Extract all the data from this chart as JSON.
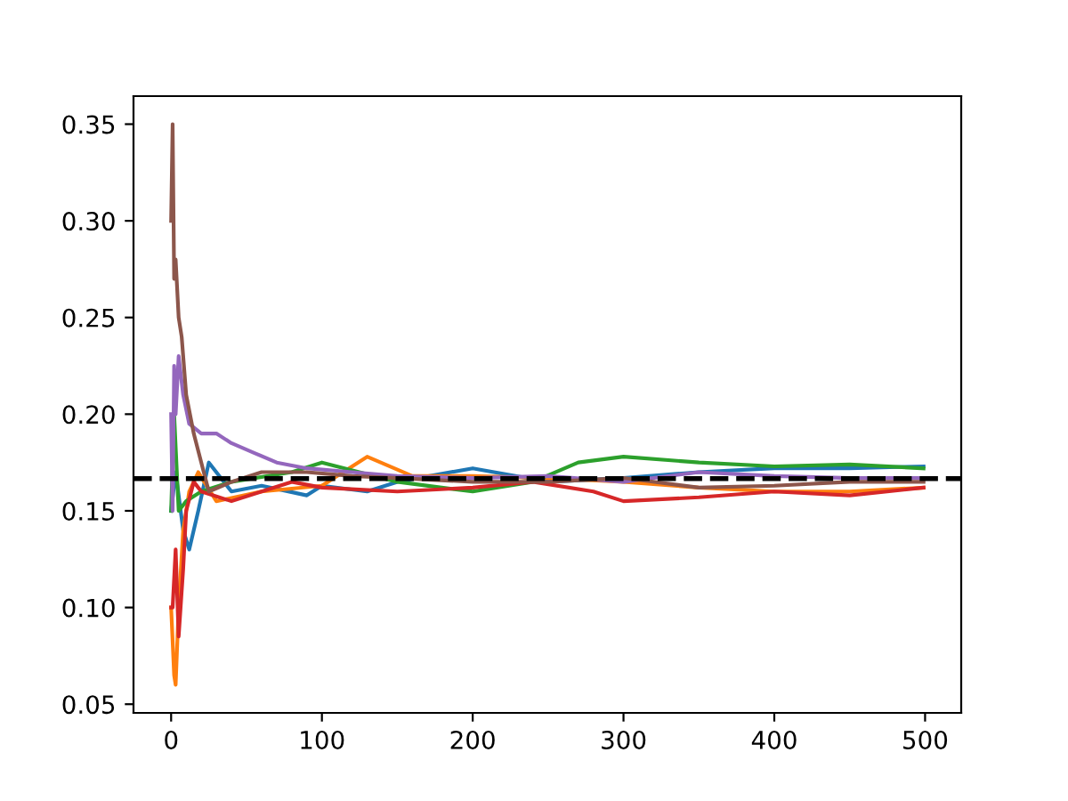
{
  "chart_data": {
    "type": "line",
    "xlim": [
      -24.95,
      523.95
    ],
    "ylim": [
      0.0455,
      0.3645
    ],
    "xticks": [
      0,
      100,
      200,
      300,
      400,
      500
    ],
    "yticks": [
      {
        "value": 0.05,
        "label": "0.05"
      },
      {
        "value": 0.1,
        "label": "0.10"
      },
      {
        "value": 0.15,
        "label": "0.15"
      },
      {
        "value": 0.2,
        "label": "0.20"
      },
      {
        "value": 0.25,
        "label": "0.25"
      },
      {
        "value": 0.3,
        "label": "0.30"
      },
      {
        "value": 0.35,
        "label": "0.35"
      }
    ],
    "grid": false,
    "legend": false,
    "line_style": "solid",
    "marker": "none",
    "ref_lines": [
      {
        "axis": "y",
        "value": 0.1667,
        "color": "#000000",
        "line_style": "dashed"
      }
    ],
    "series": [
      {
        "color": "#1f77b4",
        "x": [
          0,
          3,
          8,
          12,
          18,
          25,
          40,
          60,
          90,
          100,
          130,
          150,
          200,
          250,
          300,
          350,
          400,
          450,
          499
        ],
        "values": [
          0.15,
          0.17,
          0.14,
          0.13,
          0.15,
          0.175,
          0.16,
          0.163,
          0.158,
          0.163,
          0.16,
          0.165,
          0.172,
          0.165,
          0.167,
          0.17,
          0.172,
          0.172,
          0.173
        ]
      },
      {
        "color": "#ff7f0e",
        "x": [
          0,
          2,
          3,
          5,
          8,
          12,
          18,
          30,
          60,
          100,
          130,
          160,
          200,
          250,
          300,
          350,
          400,
          450,
          499
        ],
        "values": [
          0.1,
          0.065,
          0.06,
          0.1,
          0.14,
          0.16,
          0.17,
          0.155,
          0.16,
          0.163,
          0.178,
          0.168,
          0.168,
          0.167,
          0.165,
          0.162,
          0.16,
          0.16,
          0.162
        ]
      },
      {
        "color": "#2ca02c",
        "x": [
          0,
          2,
          5,
          10,
          20,
          40,
          80,
          100,
          150,
          200,
          240,
          270,
          300,
          350,
          400,
          450,
          499
        ],
        "values": [
          0.15,
          0.2,
          0.15,
          0.155,
          0.16,
          0.165,
          0.17,
          0.175,
          0.165,
          0.16,
          0.165,
          0.175,
          0.178,
          0.175,
          0.173,
          0.174,
          0.172
        ]
      },
      {
        "color": "#d62728",
        "x": [
          0,
          1,
          3,
          5,
          8,
          10,
          15,
          20,
          40,
          60,
          80,
          100,
          150,
          200,
          240,
          280,
          300,
          350,
          400,
          450,
          499
        ],
        "values": [
          0.1,
          0.1,
          0.13,
          0.085,
          0.12,
          0.15,
          0.165,
          0.16,
          0.155,
          0.16,
          0.165,
          0.162,
          0.16,
          0.162,
          0.165,
          0.16,
          0.155,
          0.157,
          0.16,
          0.158,
          0.162
        ]
      },
      {
        "color": "#9467bd",
        "x": [
          0,
          1,
          2,
          3,
          5,
          8,
          12,
          20,
          30,
          40,
          55,
          70,
          90,
          120,
          150,
          200,
          250,
          300,
          350,
          400,
          450,
          499
        ],
        "values": [
          0.2,
          0.15,
          0.225,
          0.2,
          0.23,
          0.21,
          0.195,
          0.19,
          0.19,
          0.185,
          0.18,
          0.175,
          0.172,
          0.17,
          0.168,
          0.167,
          0.168,
          0.165,
          0.17,
          0.168,
          0.167,
          0.167
        ]
      },
      {
        "color": "#8c564b",
        "x": [
          0,
          1,
          2,
          3,
          5,
          7,
          10,
          15,
          20,
          25,
          40,
          60,
          90,
          120,
          150,
          200,
          250,
          300,
          350,
          400,
          450,
          499
        ],
        "values": [
          0.3,
          0.35,
          0.27,
          0.28,
          0.25,
          0.24,
          0.21,
          0.19,
          0.175,
          0.16,
          0.165,
          0.17,
          0.17,
          0.168,
          0.167,
          0.165,
          0.165,
          0.167,
          0.162,
          0.163,
          0.165,
          0.165
        ]
      }
    ]
  }
}
